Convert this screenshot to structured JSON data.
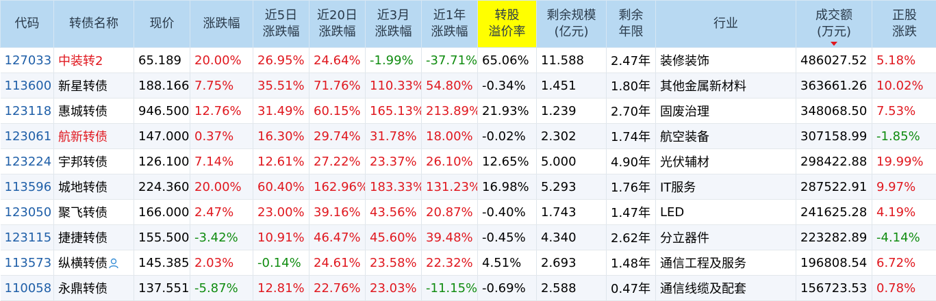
{
  "colors": {
    "up": "#e0181f",
    "down": "#108c10",
    "code": "#1f5fa8",
    "header_bg": "#b8d9f2",
    "highlight": "#ffff00"
  },
  "headers": [
    {
      "line1": "代码",
      "line2": ""
    },
    {
      "line1": "转债名称",
      "line2": ""
    },
    {
      "line1": "现价",
      "line2": ""
    },
    {
      "line1": "涨跌幅",
      "line2": ""
    },
    {
      "line1": "近5日",
      "line2": "涨跌幅"
    },
    {
      "line1": "近20日",
      "line2": "涨跌幅"
    },
    {
      "line1": "近3月",
      "line2": "涨跌幅"
    },
    {
      "line1": "近1年",
      "line2": "涨跌幅"
    },
    {
      "line1": "转股",
      "line2": "溢价率"
    },
    {
      "line1": "剩余规模",
      "line2": "(亿元)"
    },
    {
      "line1": "剩余",
      "line2": "年限"
    },
    {
      "line1": "行业",
      "line2": ""
    },
    {
      "line1": "成交额",
      "line2": "(万元)"
    },
    {
      "line1": "正股",
      "line2": "涨跌"
    }
  ],
  "rows": [
    {
      "code": "127033",
      "name": "中装转2",
      "name_red": true,
      "price": "65.189",
      "chg": "20.00%",
      "chg5": "26.95%",
      "chg20": "24.64%",
      "chg3m": "-1.99%",
      "chg1y": "-37.71%",
      "premium": "65.06%",
      "scale": "11.588",
      "years": "2.47年",
      "industry": "装修装饰",
      "amount": "486027.52",
      "stock_chg": "5.18%"
    },
    {
      "code": "113600",
      "name": "新星转债",
      "name_red": false,
      "price": "188.166",
      "chg": "7.75%",
      "chg5": "35.51%",
      "chg20": "71.76%",
      "chg3m": "110.33%",
      "chg1y": "54.80%",
      "premium": "-0.34%",
      "scale": "1.451",
      "years": "1.80年",
      "industry": "其他金属新材料",
      "amount": "363661.26",
      "stock_chg": "10.02%"
    },
    {
      "code": "123118",
      "name": "惠城转债",
      "name_red": false,
      "price": "946.500",
      "chg": "12.76%",
      "chg5": "31.49%",
      "chg20": "60.15%",
      "chg3m": "165.13%",
      "chg1y": "213.89%",
      "premium": "21.93%",
      "scale": "1.239",
      "years": "2.70年",
      "industry": "固废治理",
      "amount": "348068.50",
      "stock_chg": "7.53%"
    },
    {
      "code": "123061",
      "name": "航新转债",
      "name_red": true,
      "price": "147.000",
      "chg": "0.37%",
      "chg5": "16.30%",
      "chg20": "29.74%",
      "chg3m": "31.78%",
      "chg1y": "18.00%",
      "premium": "-0.02%",
      "scale": "2.302",
      "years": "1.74年",
      "industry": "航空装备",
      "amount": "307158.99",
      "stock_chg": "-1.85%"
    },
    {
      "code": "123224",
      "name": "宇邦转债",
      "name_red": false,
      "price": "126.100",
      "chg": "7.14%",
      "chg5": "12.61%",
      "chg20": "27.22%",
      "chg3m": "23.37%",
      "chg1y": "26.10%",
      "premium": "12.65%",
      "scale": "5.000",
      "years": "4.90年",
      "industry": "光伏辅材",
      "amount": "298422.88",
      "stock_chg": "19.99%"
    },
    {
      "code": "113596",
      "name": "城地转债",
      "name_red": false,
      "price": "224.360",
      "chg": "20.00%",
      "chg5": "60.40%",
      "chg20": "162.96%",
      "chg3m": "183.33%",
      "chg1y": "131.23%",
      "premium": "16.98%",
      "scale": "5.293",
      "years": "1.76年",
      "industry": "IT服务",
      "amount": "287522.91",
      "stock_chg": "9.97%"
    },
    {
      "code": "123050",
      "name": "聚飞转债",
      "name_red": false,
      "price": "166.000",
      "chg": "2.47%",
      "chg5": "23.00%",
      "chg20": "39.16%",
      "chg3m": "43.56%",
      "chg1y": "20.87%",
      "premium": "-0.40%",
      "scale": "1.743",
      "years": "1.47年",
      "industry": "LED",
      "amount": "241625.28",
      "stock_chg": "4.19%"
    },
    {
      "code": "123115",
      "name": "捷捷转债",
      "name_red": false,
      "price": "155.500",
      "chg": "-3.42%",
      "chg5": "10.91%",
      "chg20": "46.47%",
      "chg3m": "45.60%",
      "chg1y": "39.48%",
      "premium": "-0.45%",
      "scale": "4.340",
      "years": "2.62年",
      "industry": "分立器件",
      "amount": "223282.89",
      "stock_chg": "-4.14%"
    },
    {
      "code": "113573",
      "name": "纵横转债",
      "name_red": false,
      "name_icon": "user-icon",
      "price": "145.385",
      "chg": "2.03%",
      "chg5": "-0.14%",
      "chg20": "24.61%",
      "chg3m": "23.58%",
      "chg1y": "22.32%",
      "premium": "4.51%",
      "scale": "2.693",
      "years": "1.48年",
      "industry": "通信工程及服务",
      "amount": "196808.54",
      "stock_chg": "6.72%"
    },
    {
      "code": "110058",
      "name": "永鼎转债",
      "name_red": false,
      "price": "137.551",
      "chg": "-5.87%",
      "chg5": "12.81%",
      "chg20": "22.76%",
      "chg3m": "23.03%",
      "chg1y": "-11.15%",
      "premium": "-0.69%",
      "scale": "2.588",
      "years": "0.47年",
      "industry": "通信线缆及配套",
      "amount": "156723.53",
      "stock_chg": "0.78%"
    }
  ]
}
